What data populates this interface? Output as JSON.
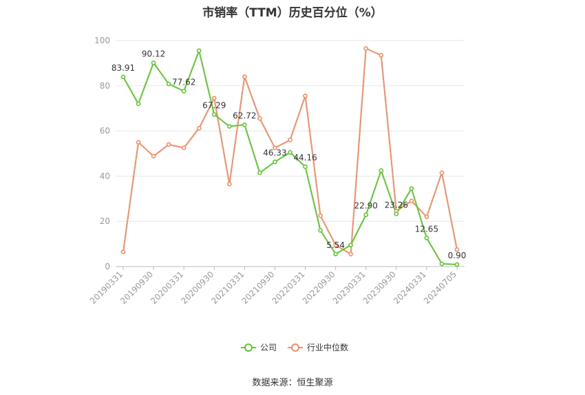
{
  "chart_data": {
    "type": "line",
    "title": "市销率（TTM）历史百分位（%）",
    "xlabel": "",
    "ylabel": "",
    "ylim": [
      0,
      100
    ],
    "yticks": [
      0,
      20,
      40,
      60,
      80,
      100
    ],
    "grid": true,
    "legend_position": "bottom",
    "categories": [
      "20190331",
      "20190630",
      "20190930",
      "20191231",
      "20200331",
      "20200630",
      "20200930",
      "20201231",
      "20210331",
      "20210630",
      "20210930",
      "20211231",
      "20220331",
      "20220630",
      "20220930",
      "20221231",
      "20230331",
      "20230630",
      "20230930",
      "20231231",
      "20240331",
      "20240630",
      "20240705"
    ],
    "x": [
      "20190331",
      "20190630",
      "20190930",
      "20191231",
      "20200331",
      "20200630",
      "20200930",
      "20201231",
      "20210331",
      "20210630",
      "20210930",
      "20211231",
      "20220331",
      "20220630",
      "20220930",
      "20221231",
      "20230331",
      "20230630",
      "20230930",
      "20231231",
      "20240331",
      "20240630",
      "20240705"
    ],
    "xtick_labels": [
      "20190331",
      "20190930",
      "20200331",
      "20200930",
      "20210331",
      "20210930",
      "20220331",
      "20220930",
      "20230331",
      "20230930",
      "20240331",
      "20240705"
    ],
    "series": [
      {
        "name": "公司",
        "color": "#5cc92d",
        "values": [
          83.91,
          72.0,
          90.12,
          80.8,
          77.62,
          95.5,
          67.29,
          62.0,
          62.72,
          41.5,
          46.33,
          50.5,
          44.16,
          16.0,
          5.54,
          9.5,
          22.9,
          42.5,
          23.26,
          34.5,
          12.65,
          1.2,
          0.9
        ],
        "labels": [
          "83.91",
          null,
          "90.12",
          null,
          "77.62",
          null,
          "67.29",
          null,
          "62.72",
          null,
          "46.33",
          null,
          "44.16",
          null,
          "5.54",
          null,
          "22.90",
          null,
          "23.26",
          null,
          "12.65",
          null,
          "0.90"
        ]
      },
      {
        "name": "行业中位数",
        "color": "#f58c63",
        "values": [
          6.5,
          55.0,
          48.8,
          54.0,
          52.5,
          61.2,
          74.5,
          36.5,
          84.0,
          65.5,
          52.5,
          56.0,
          75.5,
          22.5,
          9.5,
          5.5,
          96.5,
          93.5,
          24.5,
          29.0,
          22.0,
          41.5,
          7.5
        ]
      }
    ]
  },
  "legend": {
    "items": [
      {
        "label": "公司",
        "color": "#5cc92d"
      },
      {
        "label": "行业中位数",
        "color": "#f58c63"
      }
    ]
  },
  "source_text": "数据来源：恒生聚源"
}
